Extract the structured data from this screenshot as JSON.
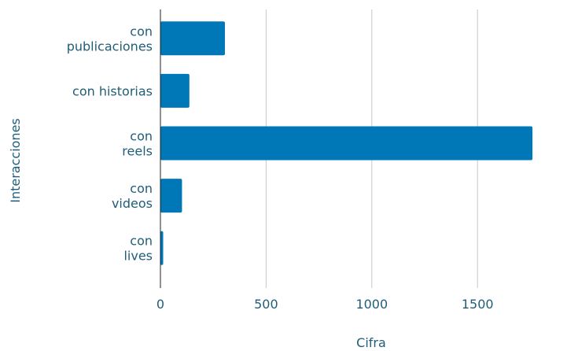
{
  "chart_data": {
    "type": "bar",
    "orientation": "horizontal",
    "categories": [
      [
        "con",
        "publicaciones"
      ],
      [
        "con historias"
      ],
      [
        "con",
        "reels"
      ],
      [
        "con",
        "videos"
      ],
      [
        "con",
        "lives"
      ]
    ],
    "values": [
      305,
      137,
      1760,
      102,
      13
    ],
    "xlabel": "Cifra",
    "ylabel": "Interacciones",
    "xlim": [
      0,
      1850
    ],
    "x_ticks": [
      0,
      500,
      1000,
      1500
    ],
    "grid": "vertical",
    "legend": "none",
    "colors": {
      "bar": "#0077b6",
      "grid": "#c8c8c8",
      "axis": "#222222",
      "text": "#1f5d78"
    }
  }
}
